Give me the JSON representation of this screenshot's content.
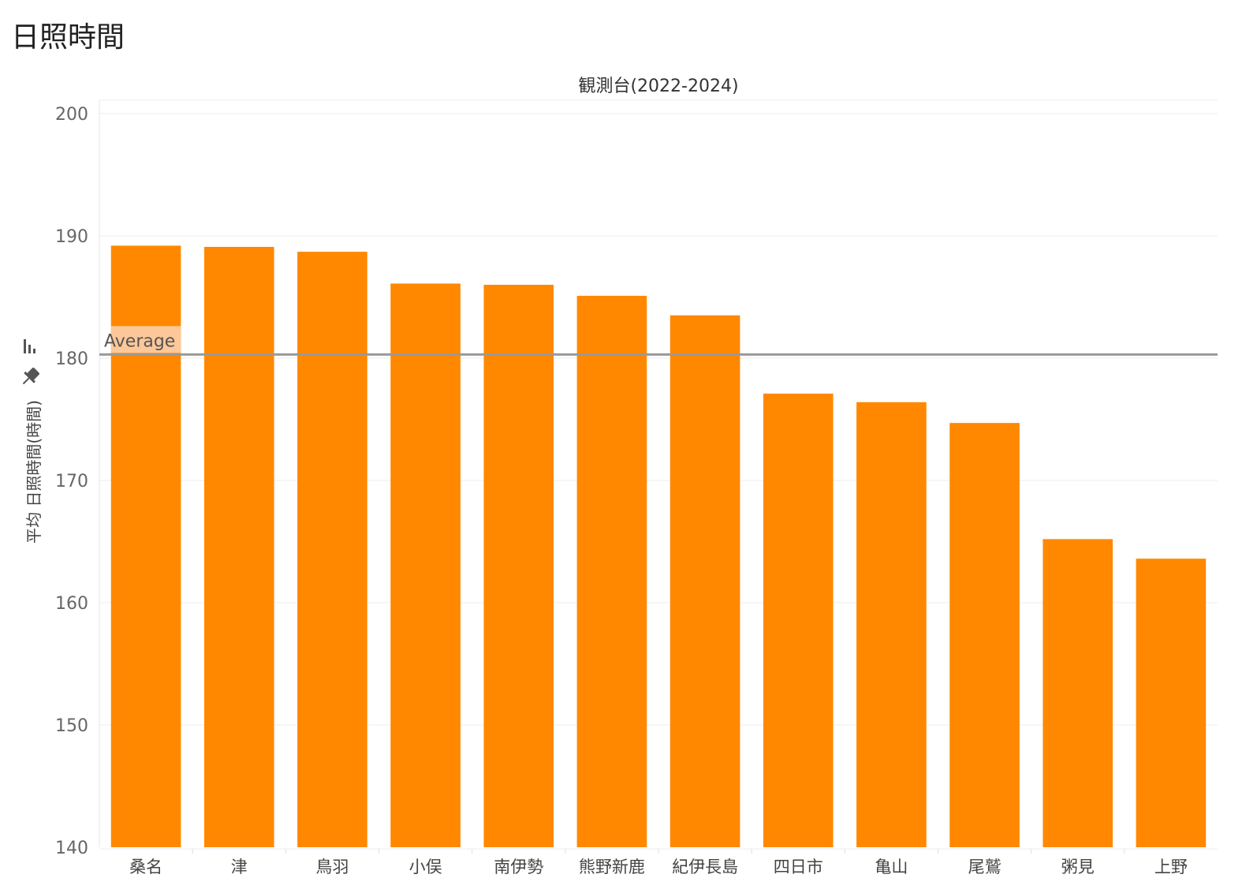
{
  "page": {
    "title": "日照時間"
  },
  "chart_data": {
    "type": "bar",
    "title": "日照時間",
    "column_header": "観測台(2022-2024)",
    "ylabel": "平均 日照時間(時間)",
    "ylim": [
      140,
      200
    ],
    "yticks": [
      140,
      150,
      160,
      170,
      180,
      190,
      200
    ],
    "grid": true,
    "bar_color": "#ff8800",
    "categories": [
      "桑名",
      "津",
      "鳥羽",
      "小俣",
      "南伊勢",
      "熊野新鹿",
      "紀伊長島",
      "四日市",
      "亀山",
      "尾鷲",
      "粥見",
      "上野"
    ],
    "values": [
      189.2,
      189.1,
      188.7,
      186.1,
      186.0,
      185.1,
      183.5,
      177.1,
      176.4,
      174.7,
      165.2,
      163.6
    ],
    "reference_line": {
      "label": "Average",
      "value": 180.3,
      "color": "#999999",
      "label_bg": "#fcc89a"
    },
    "axis_icons": [
      "bar-chart-icon",
      "pin-icon"
    ]
  }
}
